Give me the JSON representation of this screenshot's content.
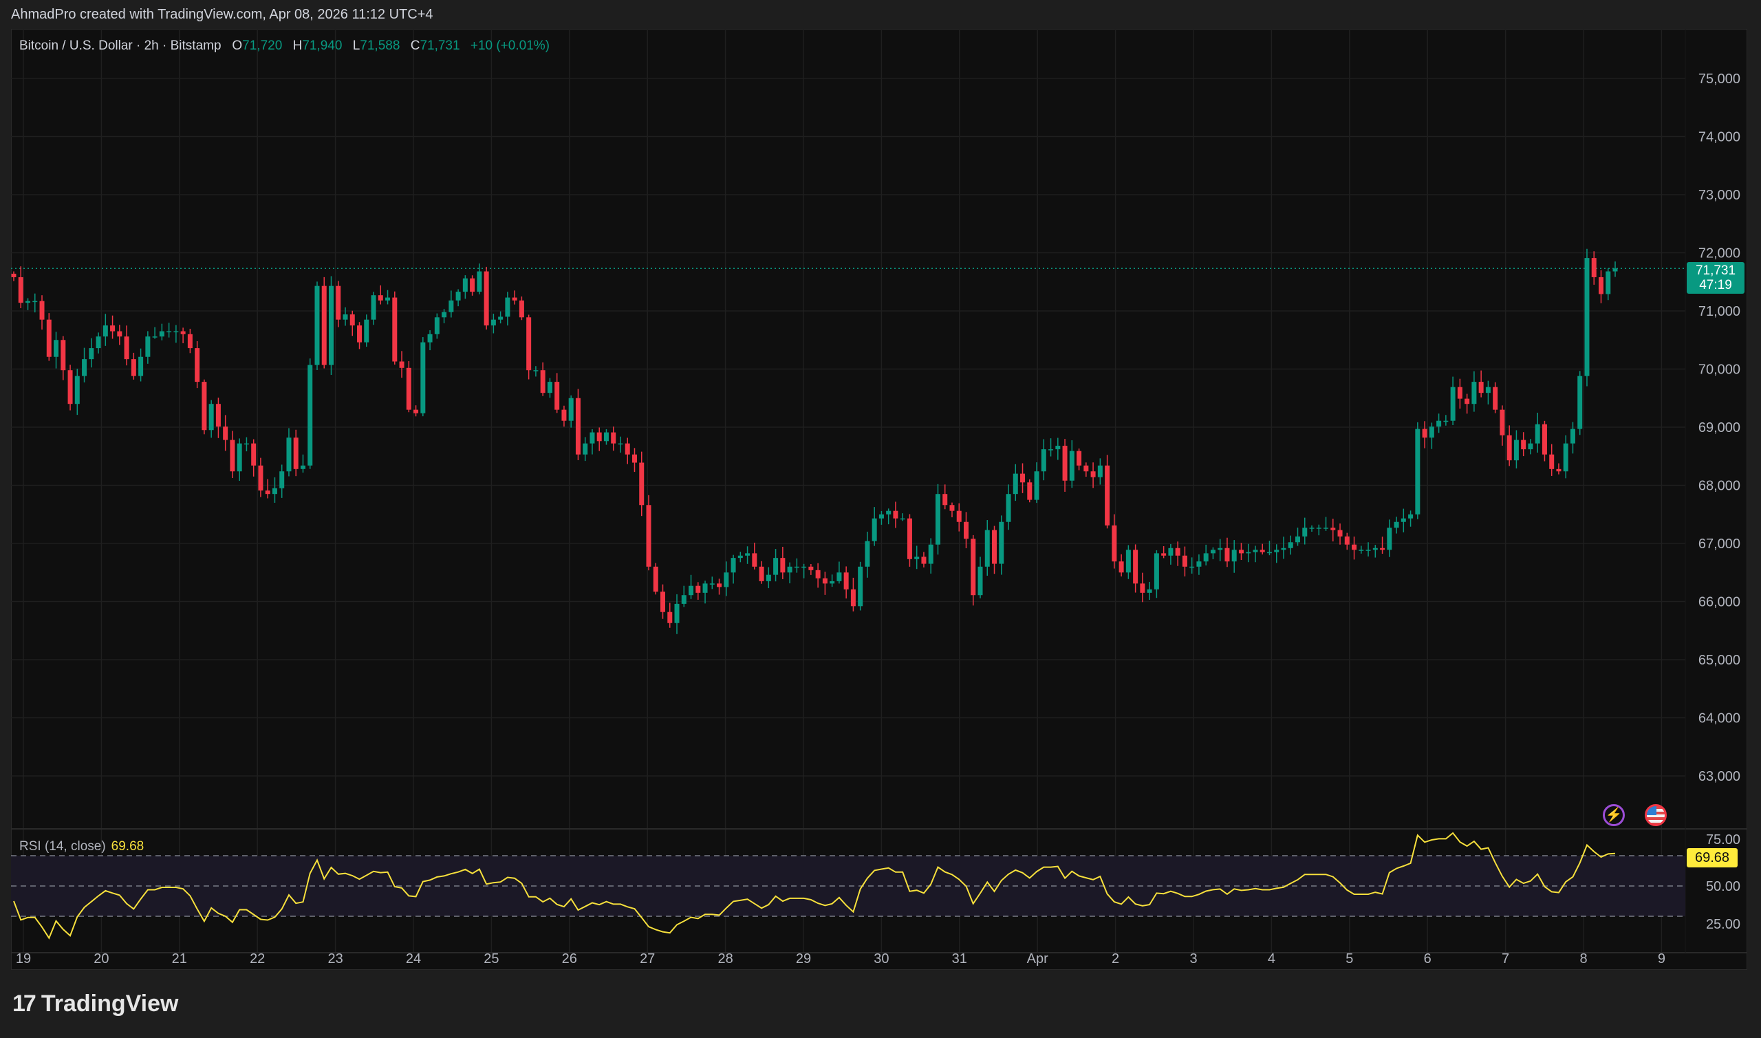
{
  "header": {
    "attribution": "AhmadPro created with TradingView.com, Apr 08, 2026 11:12 UTC+4"
  },
  "legend": {
    "symbol": "Bitcoin / U.S. Dollar · 2h · Bitstamp",
    "o_label": "O",
    "o": "71,720",
    "h_label": "H",
    "h": "71,940",
    "l_label": "L",
    "l": "71,588",
    "c_label": "C",
    "c": "71,731",
    "change": "+10 (+0.01%)"
  },
  "price_tag": {
    "price": "71,731",
    "countdown": "47:19"
  },
  "rsi": {
    "label": "RSI (14, close)",
    "value": "69.68",
    "axis_labels": [
      "75.00",
      "50.00",
      "25.00"
    ],
    "levels": [
      70,
      50,
      30
    ]
  },
  "icons": {
    "alerts": "sparkle-bolt-icon",
    "events": "us-flag-icon"
  },
  "brand": {
    "name": "TradingView"
  },
  "colors": {
    "up": "#089981",
    "down": "#f23645",
    "rsi_line": "#f7e03c",
    "rsi_band": "#1b1826",
    "background": "#0f0f0f"
  },
  "chart_data": {
    "type": "candlestick",
    "title": "Bitcoin / U.S. Dollar · 2h · Bitstamp",
    "interval": "2h",
    "y_ticks": [
      "75,000",
      "74,000",
      "73,000",
      "72,000",
      "71,000",
      "70,000",
      "69,000",
      "68,000",
      "67,000",
      "66,000",
      "65,000",
      "64,000",
      "63,000"
    ],
    "y_tick_values": [
      75000,
      74000,
      73000,
      72000,
      71000,
      70000,
      69000,
      68000,
      67000,
      66000,
      65000,
      64000,
      63000
    ],
    "ylim": [
      62100,
      75850
    ],
    "x_ticks": [
      "19",
      "20",
      "21",
      "22",
      "23",
      "24",
      "25",
      "26",
      "27",
      "28",
      "29",
      "30",
      "31",
      "Apr",
      "2",
      "3",
      "4",
      "5",
      "6",
      "7",
      "8",
      "9"
    ],
    "grid": true,
    "last_price": 71731,
    "close": [
      71580,
      71140,
      71170,
      71170,
      70850,
      70210,
      70500,
      69980,
      69400,
      69880,
      70170,
      70360,
      70560,
      70750,
      70650,
      70560,
      70170,
      69880,
      70210,
      70560,
      70560,
      70650,
      70650,
      70650,
      70600,
      70360,
      69780,
      68950,
      69400,
      69010,
      68780,
      68240,
      68720,
      68720,
      68340,
      67910,
      67850,
      67950,
      68240,
      68820,
      68280,
      68340,
      70070,
      71430,
      70070,
      71430,
      70850,
      70940,
      70750,
      70460,
      70850,
      71270,
      71180,
      71230,
      70130,
      70020,
      69300,
      69240,
      70460,
      70600,
      70890,
      70980,
      71180,
      71330,
      71560,
      71330,
      71680,
      70750,
      70850,
      70900,
      71230,
      71180,
      70890,
      69980,
      69980,
      69590,
      69780,
      69300,
      69110,
      69500,
      68530,
      68720,
      68910,
      68760,
      68910,
      68720,
      68720,
      68530,
      68390,
      67660,
      66600,
      66170,
      65820,
      65630,
      65960,
      66110,
      66270,
      66150,
      66310,
      66310,
      66250,
      66500,
      66750,
      66790,
      66830,
      66600,
      66350,
      66460,
      66750,
      66500,
      66600,
      66600,
      66600,
      66540,
      66400,
      66310,
      66350,
      66500,
      66210,
      65920,
      66600,
      67040,
      67430,
      67500,
      67560,
      67430,
      67430,
      66730,
      66770,
      66650,
      66980,
      67850,
      67660,
      67560,
      67370,
      67080,
      66110,
      66600,
      67230,
      66650,
      67370,
      67850,
      68200,
      68050,
      67750,
      68240,
      68620,
      68620,
      68680,
      68080,
      68590,
      68340,
      68240,
      68140,
      68340,
      67310,
      66690,
      66500,
      66890,
      66310,
      66150,
      66210,
      66830,
      66790,
      66920,
      66790,
      66600,
      66600,
      66690,
      66830,
      66890,
      66920,
      66690,
      66890,
      66830,
      66850,
      66890,
      66850,
      66850,
      66890,
      66920,
      67020,
      67120,
      67270,
      67270,
      67270,
      67270,
      67230,
      67120,
      66980,
      66890,
      66890,
      66890,
      66920,
      66890,
      67270,
      67370,
      67430,
      67500,
      68970,
      68820,
      69010,
      69110,
      69110,
      69690,
      69490,
      69400,
      69780,
      69590,
      69690,
      69300,
      68860,
      68430,
      68780,
      68620,
      68720,
      69050,
      68530,
      68280,
      68240,
      68720,
      68970,
      69880,
      71910,
      71580,
      71290,
      71680,
      71731
    ]
  }
}
